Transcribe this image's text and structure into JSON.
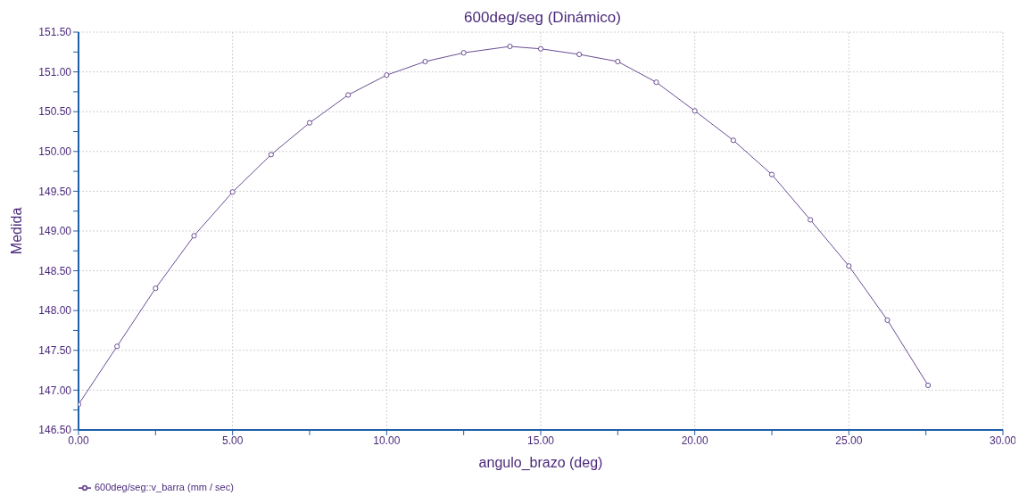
{
  "chart_data": {
    "type": "line",
    "title": "600deg/seg (Dinámico)",
    "xlabel": "angulo_brazo (deg)",
    "ylabel": "Medida",
    "x": [
      0,
      1.25,
      2.5,
      3.75,
      5,
      6.25,
      7.5,
      8.75,
      10,
      11.25,
      12.5,
      14,
      15,
      16.25,
      17.5,
      18.75,
      20,
      21.25,
      22.5,
      23.75,
      25,
      26.25,
      27.57
    ],
    "series": [
      {
        "name": "600deg/seg::v_barra (mm / sec)",
        "color": "#6a4c93",
        "values": [
          146.82,
          147.55,
          148.28,
          148.94,
          149.49,
          149.96,
          150.36,
          150.71,
          150.96,
          151.13,
          151.24,
          151.32,
          151.29,
          151.22,
          151.13,
          150.87,
          150.51,
          150.14,
          149.71,
          149.14,
          148.56,
          147.88,
          147.06
        ]
      }
    ],
    "xlim": [
      0,
      30
    ],
    "xticks": [
      {
        "value": 0,
        "label": "0.00"
      },
      {
        "value": 2.5,
        "label": null
      },
      {
        "value": 5,
        "label": "5.00"
      },
      {
        "value": 7.5,
        "label": null
      },
      {
        "value": 10,
        "label": "10.00"
      },
      {
        "value": 12.5,
        "label": null
      },
      {
        "value": 15,
        "label": "15.00"
      },
      {
        "value": 17.5,
        "label": null
      },
      {
        "value": 20,
        "label": "20.00"
      },
      {
        "value": 22.5,
        "label": null
      },
      {
        "value": 25,
        "label": "25.00"
      },
      {
        "value": 27.5,
        "label": null
      },
      {
        "value": 30,
        "label": "30.00"
      }
    ],
    "ylim": [
      146.5,
      151.5
    ],
    "yticks": [
      {
        "value": 146.5,
        "label": "146.50"
      },
      {
        "value": 146.75,
        "label": null
      },
      {
        "value": 147,
        "label": "147.00"
      },
      {
        "value": 147.25,
        "label": null
      },
      {
        "value": 147.5,
        "label": "147.50"
      },
      {
        "value": 147.75,
        "label": null
      },
      {
        "value": 148,
        "label": "148.00"
      },
      {
        "value": 148.25,
        "label": null
      },
      {
        "value": 148.5,
        "label": "148.50"
      },
      {
        "value": 148.75,
        "label": null
      },
      {
        "value": 149,
        "label": "149.00"
      },
      {
        "value": 149.25,
        "label": null
      },
      {
        "value": 149.5,
        "label": "149.50"
      },
      {
        "value": 149.75,
        "label": null
      },
      {
        "value": 150,
        "label": "150.00"
      },
      {
        "value": 150.25,
        "label": null
      },
      {
        "value": 150.5,
        "label": "150.50"
      },
      {
        "value": 150.75,
        "label": null
      },
      {
        "value": 151,
        "label": "151.00"
      },
      {
        "value": 151.25,
        "label": null
      },
      {
        "value": 151.5,
        "label": "151.50"
      }
    ],
    "grid": true,
    "legend": "bottom left",
    "marker": "circle"
  }
}
